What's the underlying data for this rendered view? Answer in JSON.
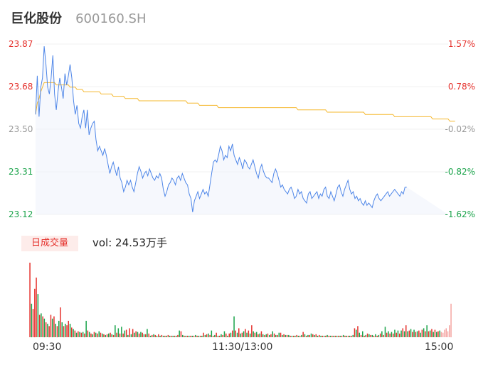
{
  "header": {
    "name": "巨化股份",
    "code": "600160.SH"
  },
  "volume_panel": {
    "tab_label": "日成交量",
    "summary": "vol: 24.53万手"
  },
  "colors": {
    "price_line": "#4e86e8",
    "avg_line": "#f5b82e",
    "up": "#e5322d",
    "down": "#1aa34a",
    "neutral": "#999999"
  },
  "chart_data": [
    {
      "type": "line",
      "title": "",
      "y_ticks_price": [
        "23.87",
        "23.68",
        "23.50",
        "23.31",
        "23.12"
      ],
      "y_ticks_pct": [
        "1.57%",
        "0.78%",
        "-0.02%",
        "-0.82%",
        "-1.62%"
      ],
      "ylim": [
        23.12,
        23.87
      ],
      "x_labels": [
        "09:30",
        "11:30/13:00",
        "15:00"
      ],
      "x_points": 240,
      "series": [
        {
          "role": "price",
          "values": [
            23.56,
            23.73,
            23.55,
            23.68,
            23.72,
            23.86,
            23.78,
            23.68,
            23.65,
            23.72,
            23.82,
            23.65,
            23.58,
            23.66,
            23.72,
            23.68,
            23.63,
            23.74,
            23.69,
            23.73,
            23.78,
            23.72,
            23.62,
            23.56,
            23.6,
            23.52,
            23.5,
            23.55,
            23.58,
            23.5,
            23.58,
            23.47,
            23.5,
            23.52,
            23.53,
            23.45,
            23.4,
            23.42,
            23.4,
            23.38,
            23.41,
            23.38,
            23.34,
            23.3,
            23.33,
            23.35,
            23.32,
            23.29,
            23.33,
            23.28,
            23.26,
            23.22,
            23.24,
            23.27,
            23.25,
            23.27,
            23.24,
            23.22,
            23.26,
            23.3,
            23.33,
            23.31,
            23.28,
            23.3,
            23.31,
            23.29,
            23.32,
            23.3,
            23.28,
            23.27,
            23.29,
            23.28,
            23.3,
            23.28,
            23.23,
            23.2,
            23.22,
            23.25,
            23.26,
            23.28,
            23.27,
            23.25,
            23.28,
            23.29,
            23.27,
            23.3,
            23.28,
            23.26,
            23.25,
            23.21,
            23.19,
            23.13,
            23.18,
            23.2,
            23.22,
            23.19,
            23.21,
            23.23,
            23.21,
            23.22,
            23.2,
            23.25,
            23.3,
            23.35,
            23.36,
            23.35,
            23.38,
            23.42,
            23.4,
            23.36,
            23.38,
            23.37,
            23.42,
            23.4,
            23.43,
            23.38,
            23.36,
            23.34,
            23.37,
            23.35,
            23.32,
            23.36,
            23.35,
            23.33,
            23.32,
            23.34,
            23.36,
            23.33,
            23.3,
            23.28,
            23.32,
            23.34,
            23.31,
            23.29,
            23.28,
            23.28,
            23.27,
            23.26,
            23.3,
            23.32,
            23.3,
            23.27,
            23.24,
            23.25,
            23.23,
            23.22,
            23.21,
            23.23,
            23.24,
            23.22,
            23.19,
            23.2,
            23.23,
            23.21,
            23.22,
            23.19,
            23.18,
            23.17,
            23.21,
            23.22,
            23.19,
            23.2,
            23.21,
            23.22,
            23.19,
            23.21,
            23.2,
            23.23,
            23.24,
            23.2,
            23.19,
            23.22,
            23.2,
            23.18,
            23.21,
            23.24,
            23.25,
            23.22,
            23.2,
            23.23,
            23.25,
            23.27,
            23.23,
            23.21,
            23.22,
            23.19,
            23.2,
            23.18,
            23.19,
            23.17,
            23.16,
            23.18,
            23.16,
            23.17,
            23.16,
            23.15,
            23.18,
            23.2,
            23.21,
            23.19,
            23.18,
            23.19,
            23.2,
            23.21,
            23.22,
            23.2,
            23.21,
            23.22,
            23.23,
            23.22,
            23.21,
            23.2,
            23.22,
            23.21,
            23.24,
            23.24
          ]
        },
        {
          "role": "average",
          "values": [
            23.56,
            23.61,
            23.63,
            23.66,
            23.68,
            23.7,
            23.7,
            23.7,
            23.7,
            23.7,
            23.7,
            23.7,
            23.69,
            23.69,
            23.69,
            23.69,
            23.69,
            23.69,
            23.69,
            23.69,
            23.68,
            23.68,
            23.68,
            23.68,
            23.67,
            23.67,
            23.67,
            23.67,
            23.66,
            23.66,
            23.66,
            23.66,
            23.66,
            23.66,
            23.66,
            23.66,
            23.66,
            23.66,
            23.65,
            23.65,
            23.65,
            23.65,
            23.65,
            23.65,
            23.65,
            23.64,
            23.64,
            23.64,
            23.64,
            23.64,
            23.64,
            23.64,
            23.63,
            23.63,
            23.63,
            23.63,
            23.63,
            23.63,
            23.63,
            23.63,
            23.62,
            23.62,
            23.62,
            23.62,
            23.62,
            23.62,
            23.62,
            23.62,
            23.62,
            23.62,
            23.62,
            23.62,
            23.62,
            23.62,
            23.62,
            23.62,
            23.62,
            23.62,
            23.62,
            23.62,
            23.62,
            23.62,
            23.62,
            23.62,
            23.62,
            23.62,
            23.62,
            23.62,
            23.61,
            23.61,
            23.61,
            23.61,
            23.61,
            23.61,
            23.61,
            23.6,
            23.6,
            23.6,
            23.6,
            23.6,
            23.6,
            23.6,
            23.6,
            23.6,
            23.6,
            23.6,
            23.59,
            23.59,
            23.59,
            23.59,
            23.59,
            23.59,
            23.59,
            23.59,
            23.59,
            23.59,
            23.59,
            23.59,
            23.59,
            23.59,
            23.59,
            23.59,
            23.59,
            23.59,
            23.59,
            23.59,
            23.59,
            23.59,
            23.59,
            23.59,
            23.59,
            23.59,
            23.59,
            23.59,
            23.59,
            23.59,
            23.59,
            23.59,
            23.59,
            23.59,
            23.59,
            23.59,
            23.59,
            23.59,
            23.59,
            23.59,
            23.59,
            23.59,
            23.59,
            23.59,
            23.59,
            23.59,
            23.58,
            23.58,
            23.58,
            23.58,
            23.58,
            23.58,
            23.58,
            23.58,
            23.58,
            23.58,
            23.58,
            23.58,
            23.58,
            23.58,
            23.58,
            23.58,
            23.58,
            23.57,
            23.57,
            23.57,
            23.57,
            23.57,
            23.57,
            23.57,
            23.57,
            23.57,
            23.57,
            23.57,
            23.57,
            23.57,
            23.57,
            23.57,
            23.57,
            23.57,
            23.57,
            23.57,
            23.57,
            23.57,
            23.57,
            23.56,
            23.56,
            23.56,
            23.56,
            23.56,
            23.56,
            23.56,
            23.56,
            23.56,
            23.56,
            23.56,
            23.56,
            23.56,
            23.56,
            23.56,
            23.56,
            23.56,
            23.55,
            23.55,
            23.55,
            23.55,
            23.55,
            23.55,
            23.55,
            23.55,
            23.55,
            23.55,
            23.55,
            23.55,
            23.55,
            23.55,
            23.55,
            23.55,
            23.55,
            23.55,
            23.55,
            23.55,
            23.55,
            23.55,
            23.54,
            23.54,
            23.54,
            23.54,
            23.54,
            23.54,
            23.54,
            23.54,
            23.54,
            23.54,
            23.53,
            23.53,
            23.53,
            23.53
          ]
        }
      ]
    },
    {
      "type": "bar",
      "title": "",
      "series": [
        {
          "role": "volume",
          "values": [
            100,
            45,
            38,
            65,
            80,
            58,
            30,
            32,
            28,
            25,
            20,
            18,
            15,
            30,
            25,
            28,
            18,
            15,
            22,
            40,
            20,
            15,
            18,
            16,
            22,
            18,
            13,
            11,
            9,
            6,
            8,
            7,
            6,
            7,
            5,
            22,
            9,
            7,
            5,
            4,
            7,
            6,
            5,
            8,
            6,
            5,
            4,
            3,
            4,
            5,
            6,
            4,
            3,
            16,
            6,
            12,
            5,
            14,
            5,
            9,
            10,
            3,
            12,
            4,
            11,
            6,
            8,
            7,
            5,
            7,
            6,
            4,
            4,
            11,
            5,
            2,
            3,
            4,
            3,
            2,
            4,
            2,
            3,
            2,
            2,
            2,
            3,
            2,
            2,
            2,
            2,
            2,
            3,
            9,
            8,
            3,
            2,
            2,
            2,
            2,
            2,
            2,
            2,
            3,
            2,
            2,
            2,
            2,
            6,
            3,
            4,
            5,
            3,
            9,
            2,
            3,
            6,
            2,
            2,
            4,
            3,
            8,
            5,
            2,
            5,
            6,
            9,
            28,
            9,
            6,
            12,
            5,
            6,
            8,
            11,
            6,
            9,
            5,
            16,
            8,
            6,
            7,
            4,
            5,
            8,
            4,
            3,
            4,
            5,
            3,
            4,
            8,
            5,
            3,
            3,
            6,
            6,
            3,
            4,
            3,
            3,
            3,
            2,
            2,
            2,
            2,
            3,
            2,
            2,
            3,
            7,
            4,
            2,
            3,
            3,
            5,
            4,
            3,
            4,
            2,
            3,
            2,
            2,
            2,
            2,
            3,
            2,
            2,
            2,
            2,
            2,
            2,
            2,
            2,
            2,
            3,
            2,
            2,
            2,
            2,
            2,
            3,
            12,
            10,
            15,
            6,
            3,
            8,
            2,
            3,
            5,
            4,
            3,
            3,
            2,
            4,
            2,
            3,
            5,
            8,
            3,
            14,
            6,
            8,
            5,
            7,
            5,
            10,
            6,
            9,
            5,
            9,
            12,
            8,
            16,
            8,
            9,
            11,
            7,
            10,
            7,
            8,
            9,
            6,
            10,
            12,
            8,
            16,
            8,
            9,
            11,
            7,
            10,
            7,
            8,
            9,
            7,
            6,
            10,
            12,
            8,
            16,
            45
          ],
          "direction": [
            "u",
            "d",
            "u",
            "u",
            "u",
            "d",
            "u",
            "d",
            "u",
            "d",
            "u",
            "d",
            "u",
            "u",
            "d",
            "u",
            "d",
            "u",
            "d",
            "u",
            "d",
            "u",
            "d",
            "u",
            "u",
            "d",
            "u",
            "d",
            "u",
            "d",
            "u",
            "d",
            "u",
            "d",
            "u",
            "d",
            "u",
            "d",
            "u",
            "d",
            "u",
            "d",
            "u",
            "d",
            "u",
            "d",
            "u",
            "d",
            "u",
            "d",
            "u",
            "d",
            "u",
            "d",
            "u",
            "d",
            "u",
            "d",
            "u",
            "d",
            "u",
            "d",
            "u",
            "d",
            "u",
            "d",
            "u",
            "d",
            "u",
            "d",
            "u",
            "d",
            "u",
            "d",
            "u",
            "d",
            "u",
            "d",
            "u",
            "d",
            "u",
            "d",
            "u",
            "d",
            "u",
            "d",
            "u",
            "d",
            "u",
            "d",
            "u",
            "d",
            "u",
            "d",
            "u",
            "d",
            "u",
            "d",
            "u",
            "d",
            "u",
            "d",
            "u",
            "d",
            "u",
            "d",
            "u",
            "d",
            "u",
            "d",
            "u",
            "d",
            "u",
            "d",
            "u",
            "d",
            "u",
            "d",
            "u",
            "d",
            "u",
            "d",
            "u",
            "d",
            "u",
            "d",
            "u",
            "d",
            "u",
            "d",
            "u",
            "d",
            "u",
            "d",
            "u",
            "d",
            "u",
            "d",
            "u",
            "d",
            "u",
            "d",
            "u",
            "d",
            "u",
            "d",
            "u",
            "d",
            "u",
            "d",
            "u",
            "d",
            "u",
            "d",
            "u",
            "d",
            "u",
            "d",
            "u",
            "d",
            "u",
            "d",
            "u",
            "d",
            "u",
            "d",
            "u",
            "d",
            "u",
            "d",
            "u",
            "d",
            "u",
            "d",
            "u",
            "d",
            "u",
            "d",
            "u",
            "d",
            "u",
            "d",
            "u",
            "d",
            "u",
            "d",
            "u",
            "d",
            "u",
            "d",
            "u",
            "d",
            "u",
            "d",
            "u",
            "d",
            "u",
            "d",
            "u",
            "d",
            "u",
            "d",
            "u",
            "d",
            "u",
            "d",
            "u",
            "d",
            "u",
            "d",
            "u",
            "d",
            "u",
            "d",
            "u",
            "d",
            "u",
            "d",
            "u",
            "d",
            "u",
            "d",
            "u",
            "d",
            "u",
            "d",
            "u",
            "d",
            "u",
            "d",
            "u",
            "d",
            "u",
            "d",
            "u",
            "d",
            "u",
            "d",
            "u",
            "d",
            "u",
            "d",
            "u",
            "d",
            "u",
            "d",
            "u",
            "d",
            "u",
            "d",
            "u",
            "d",
            "u",
            "d",
            "u",
            "d",
            "n"
          ]
        }
      ]
    }
  ]
}
